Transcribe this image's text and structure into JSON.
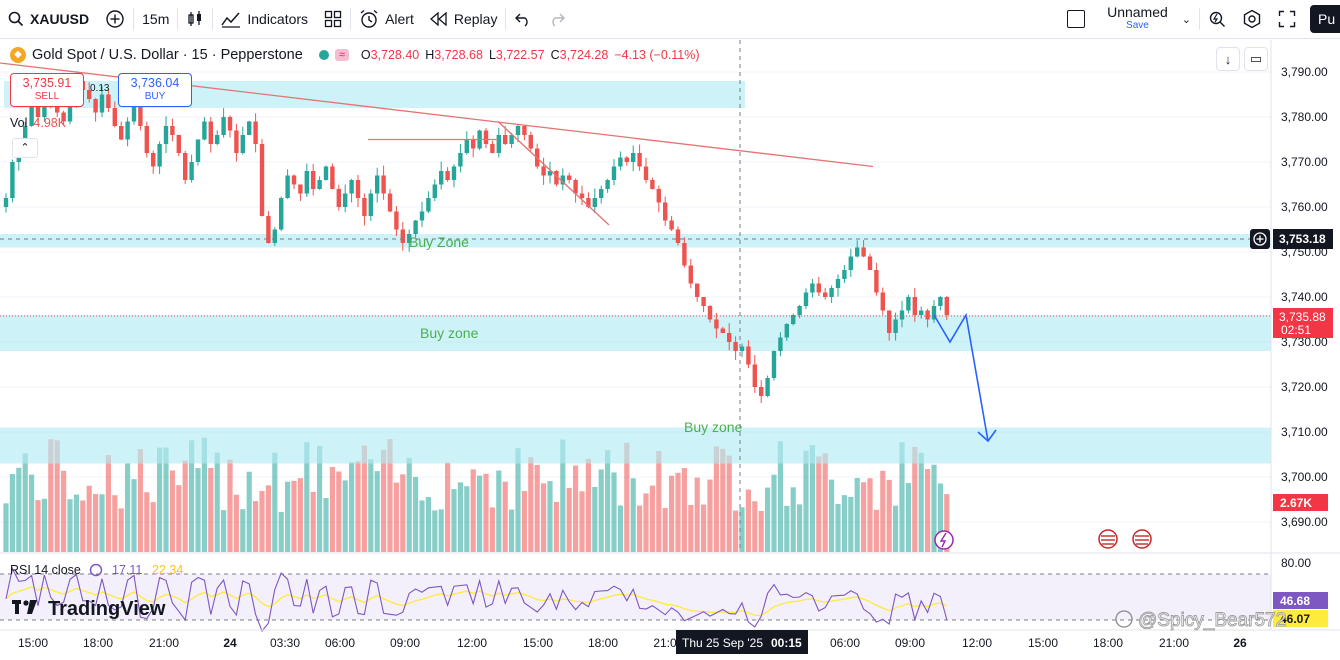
{
  "toolbar": {
    "symbol": "XAUUSD",
    "interval": "15m",
    "indicators": "Indicators",
    "alert": "Alert",
    "replay": "Replay",
    "layout_name": "Unnamed",
    "layout_save": "Save",
    "publish": "Pu"
  },
  "legend": {
    "title": "Gold Spot / U.S. Dollar · 15 · Pepperstone",
    "o_label": "O",
    "o": "3,728.40",
    "h_label": "H",
    "h": "3,728.68",
    "l_label": "L",
    "l": "3,722.57",
    "c_label": "C",
    "c": "3,724.28",
    "change": "−4.13 (−0.11%)"
  },
  "trade": {
    "sell_price": "3,735.91",
    "sell_label": "SELL",
    "spread": "0.13",
    "buy_price": "3,736.04",
    "buy_label": "BUY"
  },
  "volume": {
    "label": "Vol",
    "value": "4.98K",
    "last_badge": "2.67K"
  },
  "rsi": {
    "label": "RSI 14 close",
    "value1": "17.11",
    "value2": "22.34",
    "badge1": "46.68",
    "badge2": "46.07"
  },
  "price_axis": {
    "ticks": [
      "3,790.00",
      "3,780.00",
      "3,770.00",
      "3,760.00",
      "3,750.00",
      "3,740.00",
      "3,730.00",
      "3,720.00",
      "3,710.00",
      "3,700.00",
      "3,690.00"
    ],
    "crosshair_price": "3,753.18",
    "last_price": "3,735.88",
    "countdown": "02:51"
  },
  "rsi_axis": {
    "ticks": [
      "80.00"
    ]
  },
  "time_axis": {
    "ticks": [
      "15:00",
      "18:00",
      "21:00",
      "24",
      "03:30",
      "06:00",
      "09:00",
      "12:00",
      "15:00",
      "18:00",
      "21:0",
      "06:00",
      "09:00",
      "12:00",
      "15:00",
      "18:00",
      "21:00",
      "26"
    ],
    "crosshair_time": "Thu 25 Sep '25",
    "crosshair_clock": "00:15"
  },
  "zones": {
    "buy_zone_1": "Buy Zone",
    "buy_zone_2": "Buy zone",
    "buy_zone_3": "Buy zone"
  },
  "watermark": {
    "brand": "TradingView",
    "author": "@Spicy_Bear572"
  },
  "colors": {
    "up": "#26a69a",
    "down": "#ef5350",
    "zone": "#b2ebf2",
    "trend": "#e57373",
    "arrow": "#2962ff",
    "rsi": "#7e57c2",
    "rsi_ma": "#ffeb3b"
  },
  "chart_data": {
    "type": "candlestick",
    "symbol": "XAUUSD",
    "timeframe": "15",
    "ylim": [
      3685,
      3792
    ],
    "last_close": 3735.88,
    "zones": [
      [
        3782,
        3788
      ],
      [
        3751,
        3754
      ],
      [
        3728,
        3736
      ],
      [
        3703,
        3711
      ]
    ],
    "trendlines": [
      {
        "from": [
          "15:00",
          3792
        ],
        "to": [
          "06:00",
          3769
        ]
      },
      {
        "from": [
          "09:00",
          3775
        ],
        "to": [
          "13:00",
          3775
        ]
      },
      {
        "from": [
          "13:00",
          3779
        ],
        "to": [
          "16:00",
          3756
        ]
      }
    ],
    "projection": [
      3736,
      3730,
      3736,
      3708
    ],
    "closes": [
      3762,
      3770,
      3774,
      3778,
      3783,
      3780,
      3785,
      3784,
      3781,
      3779,
      3783,
      3788,
      3786,
      3784,
      3781,
      3785,
      3782,
      3778,
      3775,
      3779,
      3784,
      3778,
      3772,
      3769,
      3774,
      3778,
      3776,
      3772,
      3766,
      3770,
      3775,
      3779,
      3774,
      3776,
      3780,
      3777,
      3772,
      3776,
      3779,
      3774,
      3758,
      3752,
      3755,
      3762,
      3767,
      3765,
      3763,
      3768,
      3764,
      3766,
      3769,
      3764,
      3760,
      3763,
      3766,
      3762,
      3758,
      3763,
      3767,
      3763,
      3759,
      3755,
      3752,
      3754,
      3757,
      3759,
      3762,
      3765,
      3768,
      3766,
      3769,
      3772,
      3775,
      3773,
      3777,
      3774,
      3772,
      3776,
      3774,
      3776,
      3778,
      3776,
      3773,
      3769,
      3767,
      3768,
      3765,
      3767,
      3766,
      3763,
      3762,
      3760,
      3762,
      3764,
      3766,
      3769,
      3771,
      3770,
      3772,
      3769,
      3766,
      3764,
      3761,
      3757,
      3755,
      3752,
      3747,
      3743,
      3740,
      3738,
      3735,
      3733,
      3732,
      3730,
      3728,
      3729,
      3725,
      3720,
      3718,
      3722,
      3728,
      3731,
      3734,
      3736,
      3738,
      3741,
      3743,
      3741,
      3740,
      3742,
      3744,
      3746,
      3749,
      3751,
      3749,
      3746,
      3741,
      3737,
      3732,
      3735,
      3737,
      3740,
      3736,
      3737,
      3735,
      3738,
      3740,
      3736
    ]
  }
}
